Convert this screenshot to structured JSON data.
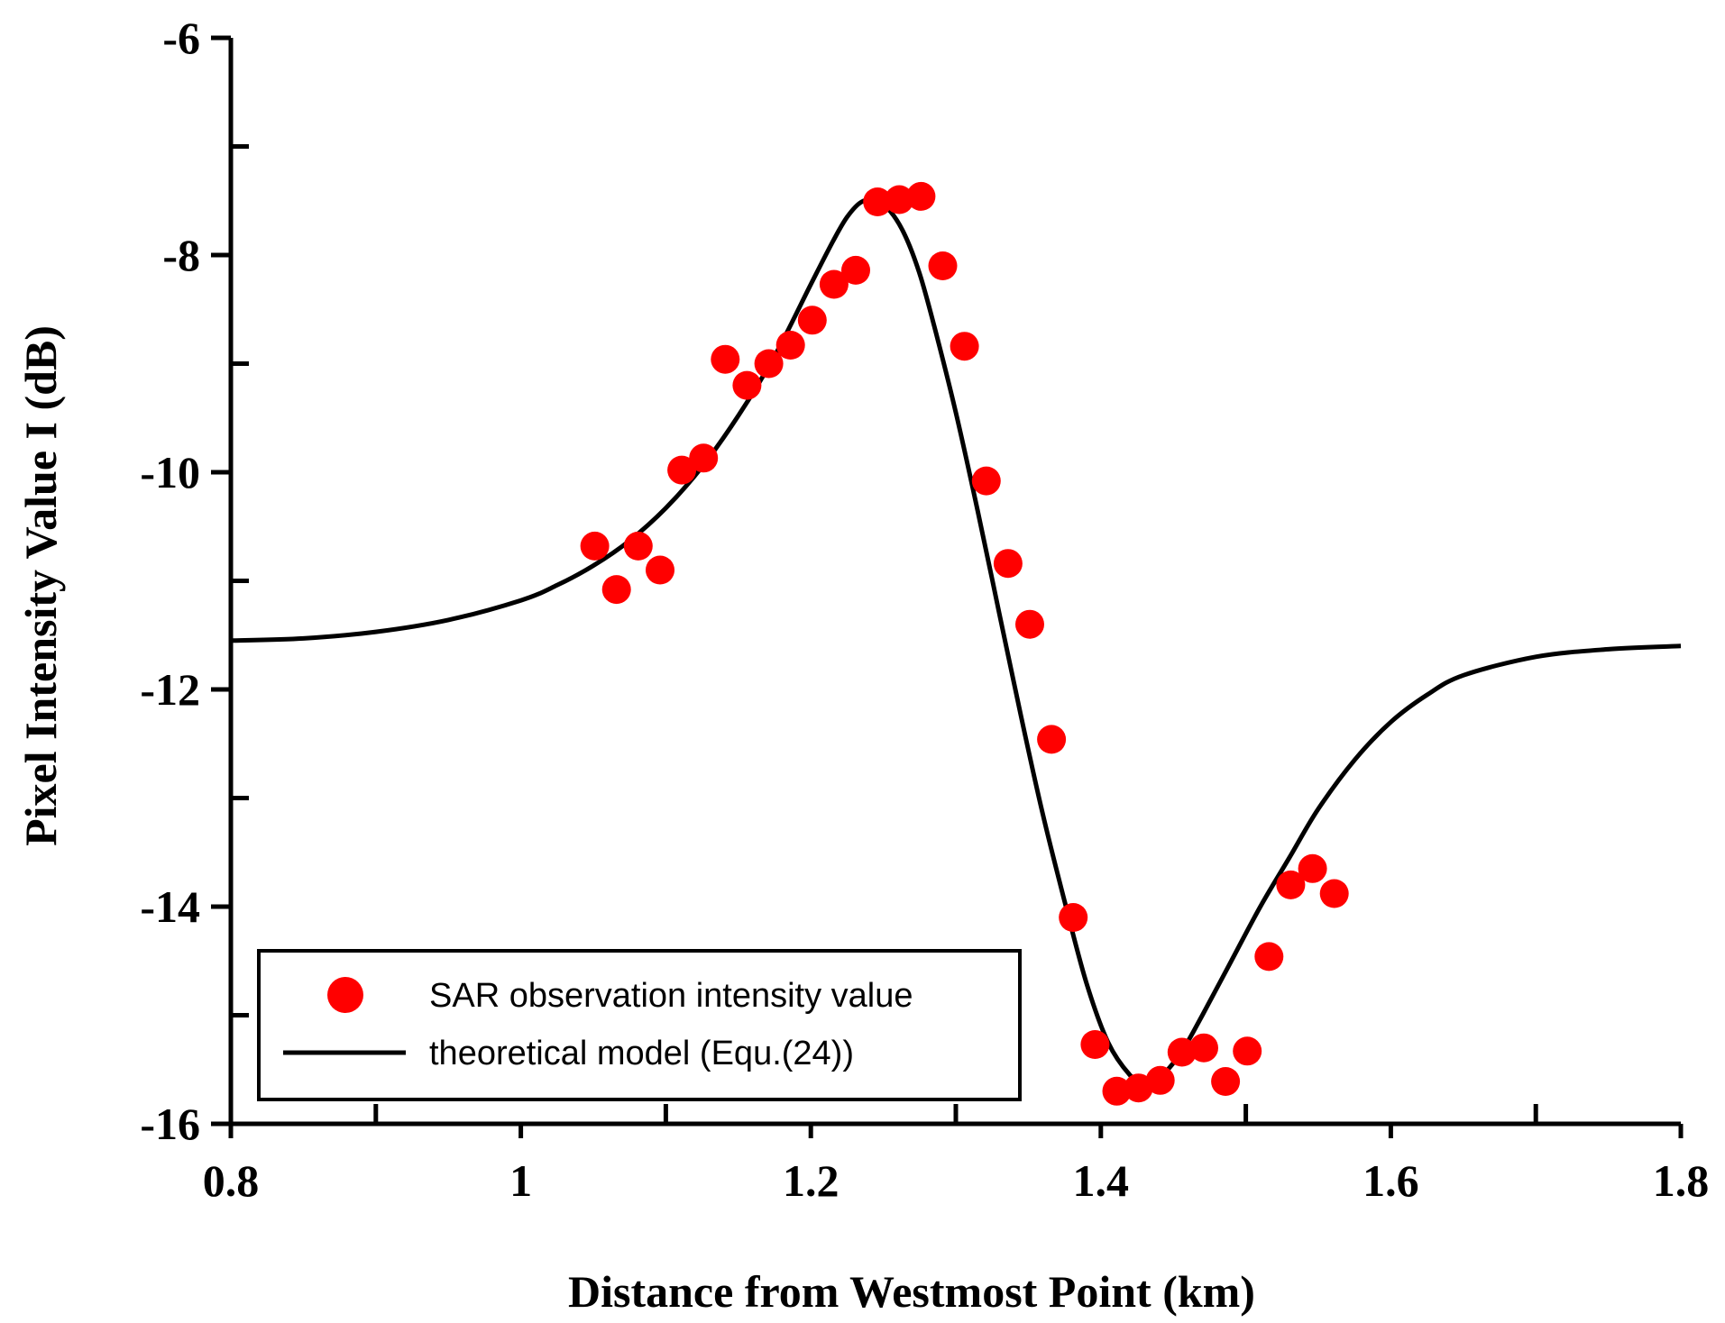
{
  "chart_data": {
    "type": "scatter",
    "title": "",
    "xlabel": "Distance from Westmost Point (km)",
    "ylabel": "Pixel Intensity Value I (dB)",
    "xlim": [
      0.8,
      1.8
    ],
    "ylim": [
      -16,
      -6
    ],
    "x_ticks": [
      0.8,
      1,
      1.2,
      1.4,
      1.6,
      1.8
    ],
    "x_tick_labels": [
      "0.8",
      "1",
      "1.2",
      "1.4",
      "1.6",
      "1.8"
    ],
    "x_minor_ticks": [
      0.9,
      1.1,
      1.3,
      1.5,
      1.7
    ],
    "y_ticks": [
      -16,
      -14,
      -12,
      -10,
      -8,
      -6
    ],
    "y_tick_labels": [
      "-16",
      "-14",
      "-12",
      "-10",
      "-8",
      "-6"
    ],
    "y_minor_ticks": [
      -15,
      -13,
      -11,
      -9,
      -7
    ],
    "grid": false,
    "legend_position": "bottom-left",
    "colors": {
      "points": "#ff0000",
      "line": "#000000"
    },
    "series": [
      {
        "name": "SAR observation intensity value",
        "kind": "scatter",
        "points": [
          [
            1.051,
            -10.68
          ],
          [
            1.066,
            -11.08
          ],
          [
            1.081,
            -10.68
          ],
          [
            1.096,
            -10.9
          ],
          [
            1.111,
            -9.98
          ],
          [
            1.126,
            -9.87
          ],
          [
            1.141,
            -8.96
          ],
          [
            1.156,
            -9.2
          ],
          [
            1.171,
            -9.0
          ],
          [
            1.186,
            -8.83
          ],
          [
            1.201,
            -8.6
          ],
          [
            1.216,
            -8.27
          ],
          [
            1.231,
            -8.14
          ],
          [
            1.246,
            -7.51
          ],
          [
            1.261,
            -7.49
          ],
          [
            1.276,
            -7.46
          ],
          [
            1.291,
            -8.1
          ],
          [
            1.306,
            -8.84
          ],
          [
            1.321,
            -10.08
          ],
          [
            1.336,
            -10.84
          ],
          [
            1.351,
            -11.4
          ],
          [
            1.366,
            -12.46
          ],
          [
            1.381,
            -14.1
          ],
          [
            1.396,
            -15.27
          ],
          [
            1.411,
            -15.7
          ],
          [
            1.426,
            -15.67
          ],
          [
            1.441,
            -15.6
          ],
          [
            1.456,
            -15.34
          ],
          [
            1.471,
            -15.3
          ],
          [
            1.486,
            -15.61
          ],
          [
            1.501,
            -15.33
          ],
          [
            1.516,
            -14.46
          ],
          [
            1.531,
            -13.8
          ],
          [
            1.546,
            -13.65
          ],
          [
            1.561,
            -13.88
          ]
        ]
      },
      {
        "name": "theoretical model (Equ.(24))",
        "kind": "line",
        "points": [
          [
            0.8,
            -11.55
          ],
          [
            0.85,
            -11.53
          ],
          [
            0.9,
            -11.47
          ],
          [
            0.95,
            -11.36
          ],
          [
            1.0,
            -11.18
          ],
          [
            1.025,
            -11.04
          ],
          [
            1.05,
            -10.86
          ],
          [
            1.075,
            -10.63
          ],
          [
            1.1,
            -10.33
          ],
          [
            1.125,
            -9.95
          ],
          [
            1.15,
            -9.48
          ],
          [
            1.175,
            -8.93
          ],
          [
            1.2,
            -8.27
          ],
          [
            1.215,
            -7.88
          ],
          [
            1.225,
            -7.65
          ],
          [
            1.235,
            -7.51
          ],
          [
            1.245,
            -7.5
          ],
          [
            1.255,
            -7.6
          ],
          [
            1.265,
            -7.82
          ],
          [
            1.275,
            -8.17
          ],
          [
            1.285,
            -8.65
          ],
          [
            1.3,
            -9.45
          ],
          [
            1.315,
            -10.35
          ],
          [
            1.33,
            -11.3
          ],
          [
            1.345,
            -12.25
          ],
          [
            1.36,
            -13.15
          ],
          [
            1.375,
            -13.95
          ],
          [
            1.39,
            -14.7
          ],
          [
            1.405,
            -15.25
          ],
          [
            1.42,
            -15.55
          ],
          [
            1.43,
            -15.62
          ],
          [
            1.44,
            -15.58
          ],
          [
            1.455,
            -15.35
          ],
          [
            1.47,
            -15.0
          ],
          [
            1.49,
            -14.5
          ],
          [
            1.51,
            -14.0
          ],
          [
            1.53,
            -13.55
          ],
          [
            1.55,
            -13.1
          ],
          [
            1.575,
            -12.65
          ],
          [
            1.6,
            -12.3
          ],
          [
            1.625,
            -12.05
          ],
          [
            1.65,
            -11.87
          ],
          [
            1.7,
            -11.7
          ],
          [
            1.75,
            -11.63
          ],
          [
            1.8,
            -11.6
          ]
        ]
      }
    ]
  }
}
